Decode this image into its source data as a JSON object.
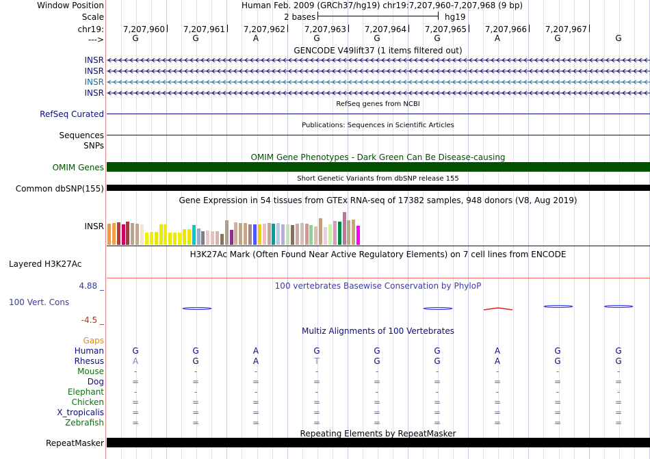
{
  "header": {
    "window_position_label": "Window Position",
    "window_position_value": "Human Feb. 2009 (GRCh37/hg19)   chr19:7,207,960-7,207,968 (9 bp)",
    "scale_label": "Scale",
    "scale_value": "2 bases",
    "scale_assembly": "hg19",
    "chrom_label": "chr19:",
    "strand_label": "--->",
    "positions": [
      "7,207,960",
      "7,207,961",
      "7,207,962",
      "7,207,963",
      "7,207,964",
      "7,207,965",
      "7,207,966",
      "7,207,967"
    ],
    "bases": [
      "G",
      "G",
      "A",
      "G",
      "G",
      "G",
      "A",
      "G",
      "G"
    ]
  },
  "tracks": {
    "gencode": {
      "title": "GENCODE V49lift37 (1 items filtered out)",
      "labels": [
        "INSR",
        "INSR",
        "INSR",
        "INSR"
      ],
      "colors": [
        "#0c0c78",
        "#0c0c78",
        "#1a6f9c",
        "#0c0c78"
      ]
    },
    "refseq": {
      "title": "RefSeq genes from NCBI",
      "label": "RefSeq Curated"
    },
    "publications": {
      "title": "Publications: Sequences in Scientific Articles",
      "label_top": "Sequences",
      "label_bottom": "SNPs"
    },
    "omim": {
      "title": "OMIM Gene Phenotypes - Dark Green Can Be Disease-causing",
      "label": "OMIM Genes",
      "color": "#005000"
    },
    "dbsnp": {
      "title": "Short Genetic Variants from dbSNP release 155",
      "label": "Common dbSNP(155)"
    },
    "gtex": {
      "title": "Gene Expression in 54 tissues from GTEx RNA-seq of 17382 samples, 948 donors (V8, Aug 2019)",
      "label": "INSR",
      "levels": [
        0.52,
        0.54,
        0.55,
        0.5,
        0.56,
        0.54,
        0.52,
        0.5,
        0.3,
        0.32,
        0.32,
        0.5,
        0.5,
        0.3,
        0.3,
        0.3,
        0.38,
        0.38,
        0.48,
        0.4,
        0.34,
        0.35,
        0.34,
        0.34,
        0.26,
        0.6,
        0.36,
        0.55,
        0.54,
        0.53,
        0.5,
        0.5,
        0.5,
        0.52,
        0.54,
        0.52,
        0.54,
        0.5,
        0.5,
        0.48,
        0.52,
        0.54,
        0.52,
        0.48,
        0.45,
        0.65,
        0.44,
        0.5,
        0.58,
        0.56,
        0.8,
        0.6,
        0.62,
        0.46
      ],
      "colors": [
        "#f59a3a",
        "#f5a048",
        "#b43c3c",
        "#cc0066",
        "#9a3c3c",
        "#b7a58f",
        "#c4a890",
        "#f5e4d0",
        "#f0f000",
        "#f0f000",
        "#e8e800",
        "#ece800",
        "#eeee00",
        "#ecec00",
        "#ecec00",
        "#f0f000",
        "#eaea00",
        "#eaea00",
        "#00cccc",
        "#99aacc",
        "#808080",
        "#eac8c8",
        "#e2c0c0",
        "#d8b4b4",
        "#8b7356",
        "#b49c8c",
        "#883388",
        "#d0b0a0",
        "#c4a488",
        "#c8a484",
        "#a08888",
        "#5555ff",
        "#f5d000",
        "#f0c0c0",
        "#bbaa99",
        "#00a0a0",
        "#b4cbe8",
        "#bbaadd",
        "#c4e0bc",
        "#8b6e58",
        "#c8a8a8",
        "#d0c0b0",
        "#cc9999",
        "#99cc99",
        "#d8c0b0",
        "#c4a080",
        "#eeccdd",
        "#cceeaa",
        "#dd99bb",
        "#008844",
        "#bb7799",
        "#bbaa88",
        "#c0a880",
        "#ff00ff"
      ]
    },
    "h3k27ac": {
      "title": "H3K27Ac Mark (Often Found Near Active Regulatory Elements) on 7 cell lines from ENCODE",
      "label": "Layered H3K27Ac"
    },
    "phylop": {
      "title": "100 vertebrates Basewise Conservation by PhyloP",
      "label": "100 Vert. Cons",
      "max_label": "4.88 _",
      "min_label": "-4.5 _",
      "title_color": "#3a3ab4",
      "max_color": "#3a3a9c",
      "min_color": "#9c3a1a"
    },
    "multiz": {
      "title": "Multiz Alignments of 100 Vertebrates",
      "gaps_label": "Gaps",
      "species": [
        {
          "name": "Human",
          "color": "#0c0c78",
          "bases": [
            "G",
            "G",
            "A",
            "G",
            "G",
            "G",
            "A",
            "G",
            "G"
          ]
        },
        {
          "name": "Rhesus",
          "color": "#0c0c78",
          "bases": [
            "A",
            "G",
            "A",
            "T",
            "G",
            "G",
            "A",
            "G",
            "G"
          ]
        },
        {
          "name": "Mouse",
          "color": "#107010",
          "bases": [
            "-",
            "-",
            "-",
            "-",
            "-",
            "-",
            "-",
            "-",
            "-"
          ]
        },
        {
          "name": "Dog",
          "color": "#0c0c78",
          "bases": [
            "=",
            "=",
            "=",
            "=",
            "=",
            "=",
            "=",
            "=",
            "="
          ]
        },
        {
          "name": "Elephant",
          "color": "#107010",
          "bases": [
            "-",
            "-",
            "-",
            "-",
            "-",
            "-",
            "-",
            "-",
            "-"
          ]
        },
        {
          "name": "Chicken",
          "color": "#107010",
          "bases": [
            "=",
            "=",
            "=",
            "=",
            "=",
            "=",
            "=",
            "=",
            "="
          ]
        },
        {
          "name": "X_tropicalis",
          "color": "#0c0c78",
          "bases": [
            "=",
            "=",
            "=",
            "=",
            "=",
            "=",
            "=",
            "=",
            "="
          ]
        },
        {
          "name": "Zebrafish",
          "color": "#107010",
          "bases": [
            "=",
            "=",
            "=",
            "=",
            "=",
            "=",
            "=",
            "=",
            "="
          ]
        }
      ]
    },
    "repeatmasker": {
      "title": "Repeating Elements by RepeatMasker",
      "label": "RepeatMasker"
    }
  }
}
